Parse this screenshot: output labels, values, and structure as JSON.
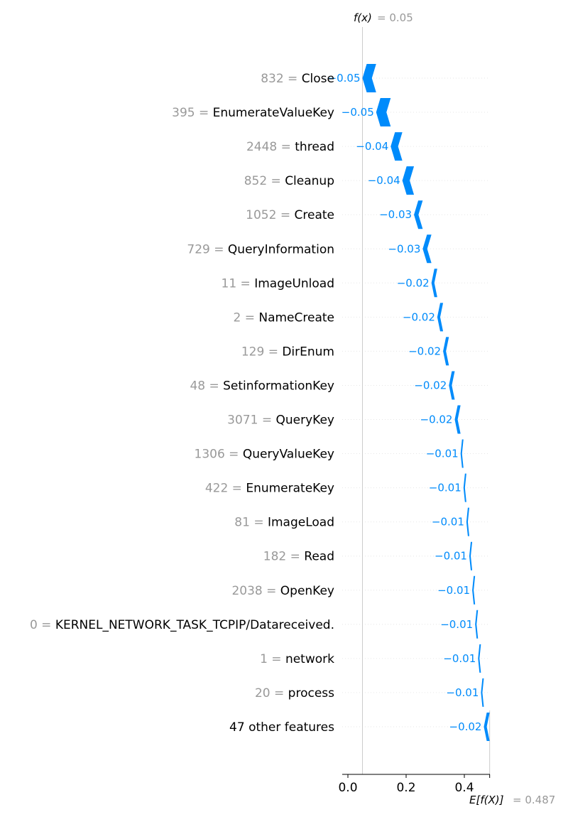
{
  "chart_data": {
    "type": "waterfall",
    "fx_label": "f(x)",
    "fx_value_text": "= 0.05",
    "fx_value": 0.05,
    "ex_label": "E[f(X)]",
    "ex_value_text": "= 0.487",
    "base_value": 0.487,
    "x_ticks": [
      0.0,
      0.2,
      0.4
    ],
    "x_tick_labels": [
      "0.0",
      "0.2",
      "0.4"
    ],
    "bar_color": "#008bfb",
    "features": [
      {
        "value": "832",
        "name": "Close",
        "contribution": -0.05,
        "label": "−0.05"
      },
      {
        "value": "395",
        "name": "EnumerateValueKey",
        "contribution": -0.05,
        "label": "−0.05"
      },
      {
        "value": "2448",
        "name": "thread",
        "contribution": -0.04,
        "label": "−0.04"
      },
      {
        "value": "852",
        "name": "Cleanup",
        "contribution": -0.04,
        "label": "−0.04"
      },
      {
        "value": "1052",
        "name": "Create",
        "contribution": -0.03,
        "label": "−0.03"
      },
      {
        "value": "729",
        "name": "QueryInformation",
        "contribution": -0.03,
        "label": "−0.03"
      },
      {
        "value": "11",
        "name": "ImageUnload",
        "contribution": -0.02,
        "label": "−0.02"
      },
      {
        "value": "2",
        "name": "NameCreate",
        "contribution": -0.02,
        "label": "−0.02"
      },
      {
        "value": "129",
        "name": "DirEnum",
        "contribution": -0.02,
        "label": "−0.02"
      },
      {
        "value": "48",
        "name": "SetinformationKey",
        "contribution": -0.02,
        "label": "−0.02"
      },
      {
        "value": "3071",
        "name": "QueryKey",
        "contribution": -0.02,
        "label": "−0.02"
      },
      {
        "value": "1306",
        "name": "QueryValueKey",
        "contribution": -0.01,
        "label": "−0.01"
      },
      {
        "value": "422",
        "name": "EnumerateKey",
        "contribution": -0.01,
        "label": "−0.01"
      },
      {
        "value": "81",
        "name": "ImageLoad",
        "contribution": -0.01,
        "label": "−0.01"
      },
      {
        "value": "182",
        "name": "Read",
        "contribution": -0.01,
        "label": "−0.01"
      },
      {
        "value": "2038",
        "name": "OpenKey",
        "contribution": -0.01,
        "label": "−0.01"
      },
      {
        "value": "0",
        "name": "KERNEL_NETWORK_TASK_TCPIP/Datareceived.",
        "contribution": -0.01,
        "label": "−0.01"
      },
      {
        "value": "1",
        "name": "network",
        "contribution": -0.01,
        "label": "−0.01"
      },
      {
        "value": "20",
        "name": "process",
        "contribution": -0.01,
        "label": "−0.01"
      },
      {
        "value": "",
        "name": "47 other features",
        "contribution": -0.02,
        "label": "−0.02"
      }
    ]
  }
}
